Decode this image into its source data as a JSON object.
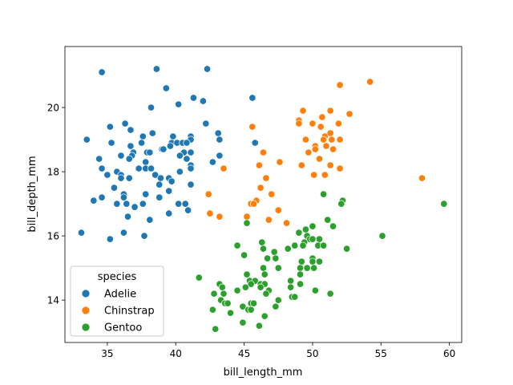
{
  "chart_data": {
    "type": "scatter",
    "title": "",
    "xlabel": "bill_length_mm",
    "ylabel": "bill_depth_mm",
    "xlim": [
      31.9,
      60.9
    ],
    "ylim": [
      12.68,
      21.9
    ],
    "xticks": [
      35,
      40,
      45,
      50,
      55,
      60
    ],
    "yticks": [
      14,
      16,
      18,
      20
    ],
    "grid": false,
    "legend": {
      "title": "species",
      "placement": "lower-left"
    },
    "series": [
      {
        "name": "Adelie",
        "color": "#1f77b4",
        "points": [
          [
            34.6,
            21.1
          ],
          [
            38.6,
            21.2
          ],
          [
            42.3,
            21.2
          ],
          [
            39.3,
            20.6
          ],
          [
            41.3,
            20.3
          ],
          [
            42.0,
            20.2
          ],
          [
            40.2,
            20.1
          ],
          [
            38.2,
            20.0
          ],
          [
            42.2,
            19.5
          ],
          [
            35.2,
            19.4
          ],
          [
            36.3,
            19.5
          ],
          [
            36.7,
            19.3
          ],
          [
            43.1,
            19.2
          ],
          [
            43.2,
            19.0
          ],
          [
            33.5,
            19.0
          ],
          [
            35.3,
            18.9
          ],
          [
            37.6,
            19.1
          ],
          [
            38.3,
            19.2
          ],
          [
            37.5,
            18.9
          ],
          [
            36.7,
            18.8
          ],
          [
            39.8,
            19.1
          ],
          [
            41.1,
            19.1
          ],
          [
            41.1,
            19.0
          ],
          [
            39.7,
            18.9
          ],
          [
            40.1,
            18.9
          ],
          [
            40.5,
            18.9
          ],
          [
            40.8,
            18.9
          ],
          [
            39.6,
            18.8
          ],
          [
            39.0,
            18.7
          ],
          [
            39.1,
            18.7
          ],
          [
            36.9,
            18.6
          ],
          [
            36.8,
            18.5
          ],
          [
            36.6,
            18.4
          ],
          [
            36.0,
            18.5
          ],
          [
            37.9,
            18.6
          ],
          [
            38.1,
            18.6
          ],
          [
            34.4,
            18.4
          ],
          [
            40.6,
            18.6
          ],
          [
            41.1,
            18.6
          ],
          [
            40.3,
            18.5
          ],
          [
            40.8,
            18.4
          ],
          [
            41.1,
            18.2
          ],
          [
            41.1,
            18.1
          ],
          [
            42.7,
            18.3
          ],
          [
            43.2,
            18.5
          ],
          [
            37.8,
            18.3
          ],
          [
            34.6,
            18.1
          ],
          [
            37.3,
            18.1
          ],
          [
            37.8,
            18.1
          ],
          [
            38.2,
            18.1
          ],
          [
            35.7,
            18.0
          ],
          [
            36.0,
            17.9
          ],
          [
            36.0,
            17.8
          ],
          [
            36.6,
            17.8
          ],
          [
            35.0,
            17.9
          ],
          [
            38.5,
            17.9
          ],
          [
            38.9,
            17.8
          ],
          [
            39.5,
            17.8
          ],
          [
            39.7,
            17.7
          ],
          [
            40.3,
            18.0
          ],
          [
            41.1,
            17.6
          ],
          [
            38.8,
            17.6
          ],
          [
            35.5,
            17.5
          ],
          [
            39.5,
            17.4
          ],
          [
            36.2,
            17.3
          ],
          [
            36.2,
            17.2
          ],
          [
            37.8,
            17.3
          ],
          [
            38.8,
            17.2
          ],
          [
            34.6,
            17.2
          ],
          [
            34.0,
            17.1
          ],
          [
            35.7,
            17.0
          ],
          [
            36.4,
            17.0
          ],
          [
            37.6,
            17.0
          ],
          [
            37.0,
            16.9
          ],
          [
            40.2,
            17.0
          ],
          [
            40.7,
            17.0
          ],
          [
            40.9,
            16.8
          ],
          [
            39.5,
            16.7
          ],
          [
            36.5,
            16.6
          ],
          [
            38.1,
            16.5
          ],
          [
            33.1,
            16.1
          ],
          [
            35.2,
            15.9
          ],
          [
            36.2,
            16.1
          ],
          [
            37.7,
            16.0
          ],
          [
            45.6,
            20.3
          ],
          [
            45.8,
            18.9
          ]
        ]
      },
      {
        "name": "Chinstrap",
        "color": "#ff7f0e",
        "points": [
          [
            43.5,
            18.1
          ],
          [
            42.4,
            17.3
          ],
          [
            42.5,
            16.7
          ],
          [
            43.2,
            16.6
          ],
          [
            52.0,
            20.7
          ],
          [
            49.3,
            19.9
          ],
          [
            51.3,
            19.9
          ],
          [
            52.7,
            19.8
          ],
          [
            50.7,
            19.7
          ],
          [
            49.0,
            19.6
          ],
          [
            49.0,
            19.5
          ],
          [
            50.0,
            19.5
          ],
          [
            50.6,
            19.4
          ],
          [
            51.9,
            19.5
          ],
          [
            45.6,
            19.4
          ],
          [
            49.5,
            19.0
          ],
          [
            50.9,
            19.1
          ],
          [
            51.3,
            19.2
          ],
          [
            50.8,
            19.0
          ],
          [
            51.4,
            19.0
          ],
          [
            52.0,
            19.0
          ],
          [
            50.2,
            18.8
          ],
          [
            50.2,
            18.7
          ],
          [
            51.0,
            18.8
          ],
          [
            51.5,
            18.7
          ],
          [
            49.7,
            18.6
          ],
          [
            46.4,
            18.6
          ],
          [
            50.5,
            18.4
          ],
          [
            47.6,
            18.3
          ],
          [
            46.1,
            18.2
          ],
          [
            49.2,
            18.2
          ],
          [
            51.3,
            18.2
          ],
          [
            50.1,
            17.9
          ],
          [
            50.9,
            17.9
          ],
          [
            52.0,
            18.1
          ],
          [
            46.6,
            17.8
          ],
          [
            46.2,
            17.5
          ],
          [
            47.0,
            17.3
          ],
          [
            45.9,
            17.1
          ],
          [
            45.5,
            17.0
          ],
          [
            45.7,
            17.0
          ],
          [
            47.5,
            16.8
          ],
          [
            45.2,
            16.6
          ],
          [
            46.8,
            16.5
          ],
          [
            48.1,
            16.4
          ],
          [
            54.2,
            20.8
          ],
          [
            58.0,
            17.8
          ]
        ]
      },
      {
        "name": "Gentoo",
        "color": "#2ca02c",
        "points": [
          [
            50.8,
            17.3
          ],
          [
            52.2,
            17.1
          ],
          [
            52.1,
            17.0
          ],
          [
            45.2,
            16.4
          ],
          [
            51.1,
            16.5
          ],
          [
            51.5,
            16.3
          ],
          [
            50.0,
            16.3
          ],
          [
            49.5,
            16.2
          ],
          [
            49.0,
            16.1
          ],
          [
            59.6,
            17.0
          ],
          [
            55.1,
            16.0
          ],
          [
            49.6,
            16.0
          ],
          [
            49.8,
            15.9
          ],
          [
            50.0,
            15.9
          ],
          [
            50.5,
            15.9
          ],
          [
            49.4,
            15.8
          ],
          [
            49.3,
            15.7
          ],
          [
            48.7,
            15.7
          ],
          [
            50.4,
            15.7
          ],
          [
            50.8,
            15.7
          ],
          [
            48.2,
            15.6
          ],
          [
            52.5,
            15.6
          ],
          [
            44.5,
            15.7
          ],
          [
            46.3,
            15.8
          ],
          [
            46.4,
            15.6
          ],
          [
            47.2,
            15.5
          ],
          [
            45.0,
            15.4
          ],
          [
            46.7,
            15.3
          ],
          [
            47.3,
            15.3
          ],
          [
            49.2,
            15.2
          ],
          [
            50.0,
            15.3
          ],
          [
            50.0,
            15.2
          ],
          [
            50.5,
            15.2
          ],
          [
            46.4,
            15.0
          ],
          [
            47.5,
            15.0
          ],
          [
            49.1,
            15.0
          ],
          [
            49.6,
            15.0
          ],
          [
            50.1,
            15.0
          ],
          [
            45.2,
            14.8
          ],
          [
            46.5,
            14.8
          ],
          [
            49.1,
            14.8
          ],
          [
            41.7,
            14.7
          ],
          [
            43.2,
            14.5
          ],
          [
            43.4,
            14.4
          ],
          [
            45.4,
            14.6
          ],
          [
            45.8,
            14.6
          ],
          [
            45.5,
            14.5
          ],
          [
            46.2,
            14.5
          ],
          [
            46.5,
            14.5
          ],
          [
            45.1,
            14.4
          ],
          [
            46.2,
            14.4
          ],
          [
            46.8,
            14.3
          ],
          [
            46.6,
            14.2
          ],
          [
            44.5,
            14.3
          ],
          [
            48.4,
            14.6
          ],
          [
            48.4,
            14.4
          ],
          [
            49.1,
            14.5
          ],
          [
            50.2,
            14.3
          ],
          [
            51.3,
            14.2
          ],
          [
            48.5,
            14.1
          ],
          [
            48.7,
            14.1
          ],
          [
            42.8,
            14.2
          ],
          [
            43.5,
            14.2
          ],
          [
            43.3,
            14.0
          ],
          [
            43.6,
            13.9
          ],
          [
            43.8,
            13.9
          ],
          [
            45.5,
            13.9
          ],
          [
            45.7,
            13.9
          ],
          [
            47.5,
            14.0
          ],
          [
            47.3,
            13.8
          ],
          [
            44.9,
            13.8
          ],
          [
            45.3,
            13.7
          ],
          [
            45.5,
            13.7
          ],
          [
            42.7,
            13.7
          ],
          [
            44.0,
            13.6
          ],
          [
            46.5,
            13.5
          ],
          [
            44.9,
            13.3
          ],
          [
            46.1,
            13.2
          ],
          [
            42.9,
            13.1
          ]
        ]
      }
    ]
  }
}
